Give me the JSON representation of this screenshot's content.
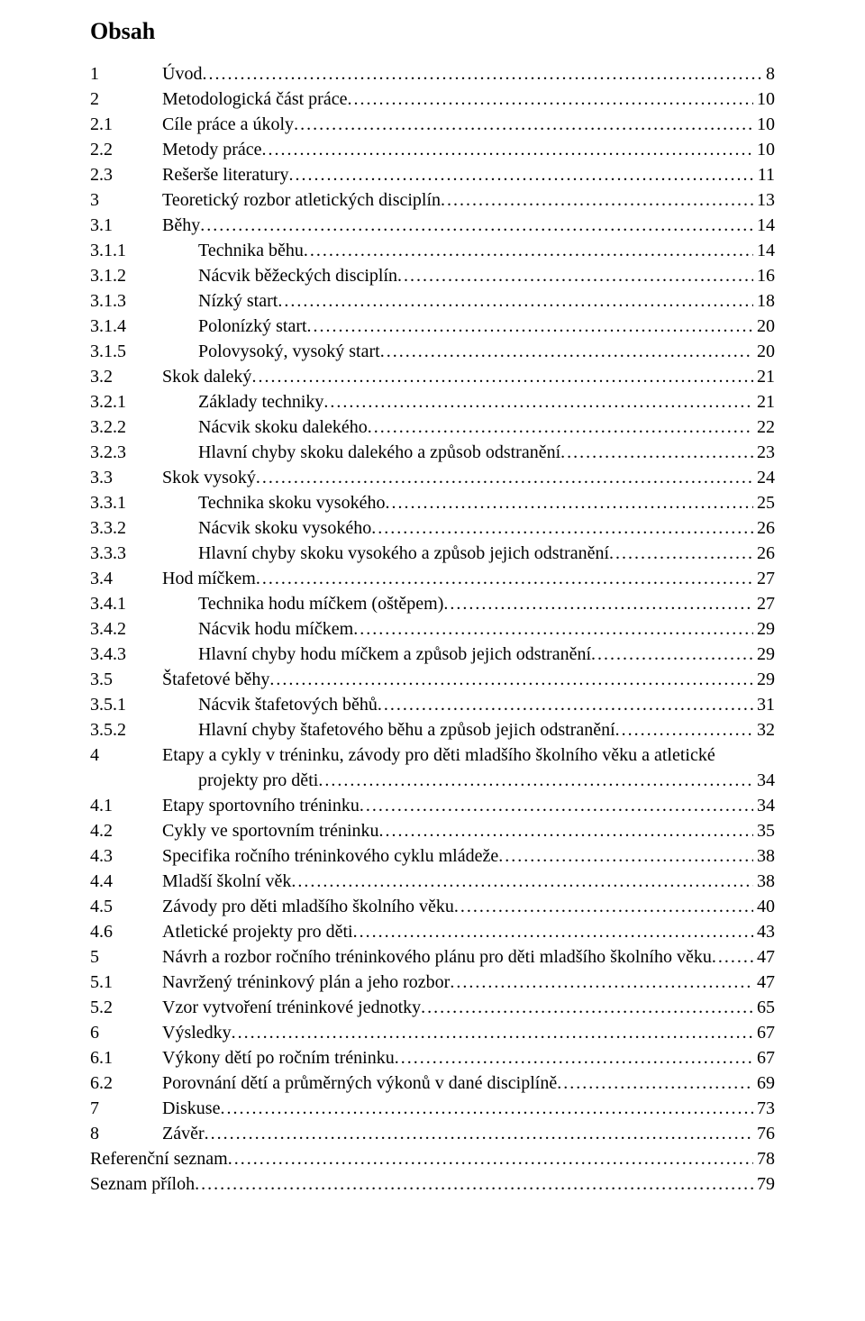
{
  "title": "Obsah",
  "entries": [
    {
      "num": "1",
      "label": "Úvod",
      "page": "8",
      "indent": 1
    },
    {
      "num": "2",
      "label": "Metodologická část práce",
      "page": "10",
      "indent": 1
    },
    {
      "num": "2.1",
      "label": "Cíle práce a úkoly",
      "page": "10",
      "indent": 1
    },
    {
      "num": "2.2",
      "label": "Metody práce",
      "page": "10",
      "indent": 1
    },
    {
      "num": "2.3",
      "label": "Rešerše literatury",
      "page": "11",
      "indent": 1
    },
    {
      "num": "3",
      "label": "Teoretický rozbor atletických disciplín",
      "page": "13",
      "indent": 1
    },
    {
      "num": "3.1",
      "label": "Běhy",
      "page": "14",
      "indent": 1
    },
    {
      "num": "3.1.1",
      "label": "Technika běhu",
      "page": "14",
      "indent": 2
    },
    {
      "num": "3.1.2",
      "label": "Nácvik běžeckých disciplín",
      "page": "16",
      "indent": 2
    },
    {
      "num": "3.1.3",
      "label": "Nízký start",
      "page": "18",
      "indent": 2
    },
    {
      "num": "3.1.4",
      "label": "Polonízký start",
      "page": "20",
      "indent": 2
    },
    {
      "num": "3.1.5",
      "label": "Polovysoký, vysoký start",
      "page": "20",
      "indent": 2
    },
    {
      "num": "3.2",
      "label": "Skok daleký",
      "page": "21",
      "indent": 1
    },
    {
      "num": "3.2.1",
      "label": "Základy techniky",
      "page": "21",
      "indent": 2
    },
    {
      "num": "3.2.2",
      "label": "Nácvik skoku dalekého",
      "page": "22",
      "indent": 2
    },
    {
      "num": "3.2.3",
      "label": "Hlavní chyby skoku dalekého a způsob odstranění",
      "page": "23",
      "indent": 2
    },
    {
      "num": "3.3",
      "label": "Skok vysoký",
      "page": "24",
      "indent": 1
    },
    {
      "num": "3.3.1",
      "label": "Technika skoku vysokého",
      "page": "25",
      "indent": 2
    },
    {
      "num": "3.3.2",
      "label": "Nácvik skoku vysokého",
      "page": "26",
      "indent": 2
    },
    {
      "num": "3.3.3",
      "label": "Hlavní chyby skoku vysokého a způsob jejich odstranění",
      "page": "26",
      "indent": 2
    },
    {
      "num": "3.4",
      "label": "Hod míčkem",
      "page": "27",
      "indent": 1
    },
    {
      "num": "3.4.1",
      "label": "Technika hodu míčkem (oštěpem)",
      "page": "27",
      "indent": 2
    },
    {
      "num": "3.4.2",
      "label": "Nácvik hodu míčkem",
      "page": "29",
      "indent": 2
    },
    {
      "num": "3.4.3",
      "label": "Hlavní chyby hodu míčkem a způsob jejich odstranění",
      "page": "29",
      "indent": 2
    },
    {
      "num": "3.5",
      "label": "Štafetové běhy",
      "page": "29",
      "indent": 1
    },
    {
      "num": "3.5.1",
      "label": "Nácvik štafetových běhů",
      "page": "31",
      "indent": 2
    },
    {
      "num": "3.5.2",
      "label": "Hlavní chyby štafetového běhu a způsob jejich odstranění",
      "page": "32",
      "indent": 2
    },
    {
      "num": "4",
      "label": "Etapy a cykly v  tréninku, závody pro děti mladšího školního věku a atletické",
      "page": "",
      "indent": 1,
      "noPage": true
    },
    {
      "num": "",
      "label": "projekty pro děti",
      "page": "34",
      "indent": 2,
      "continuation": true
    },
    {
      "num": "4.1",
      "label": "Etapy sportovního tréninku",
      "page": "34",
      "indent": 1
    },
    {
      "num": "4.2",
      "label": "Cykly ve sportovním tréninku",
      "page": "35",
      "indent": 1
    },
    {
      "num": "4.3",
      "label": "Specifika ročního tréninkového cyklu mládeže",
      "page": "38",
      "indent": 1
    },
    {
      "num": "4.4",
      "label": "Mladší školní věk",
      "page": "38",
      "indent": 1
    },
    {
      "num": "4.5",
      "label": "Závody pro děti mladšího školního věku",
      "page": "40",
      "indent": 1
    },
    {
      "num": "4.6",
      "label": "Atletické projekty pro děti",
      "page": "43",
      "indent": 1
    },
    {
      "num": "5",
      "label": "Návrh a rozbor ročního tréninkového plánu pro děti mladšího školního věku",
      "page": "47",
      "indent": 1
    },
    {
      "num": "5.1",
      "label": "Navržený tréninkový plán a jeho rozbor",
      "page": "47",
      "indent": 1
    },
    {
      "num": "5.2",
      "label": "Vzor vytvoření tréninkové jednotky",
      "page": "65",
      "indent": 1
    },
    {
      "num": "6",
      "label": "Výsledky",
      "page": "67",
      "indent": 1
    },
    {
      "num": "6.1",
      "label": "Výkony dětí po ročním tréninku",
      "page": "67",
      "indent": 1
    },
    {
      "num": "6.2",
      "label": "Porovnání dětí a průměrných výkonů v dané disciplíně",
      "page": "69",
      "indent": 1
    },
    {
      "num": "7",
      "label": "Diskuse",
      "page": "73",
      "indent": 1
    },
    {
      "num": "8",
      "label": "Závěr",
      "page": "76",
      "indent": 1
    },
    {
      "num": "",
      "label": "Referenční seznam",
      "page": "78",
      "indent": 0,
      "noNum": true
    },
    {
      "num": "",
      "label": "Seznam příloh",
      "page": "79",
      "indent": 0,
      "noNum": true
    }
  ]
}
